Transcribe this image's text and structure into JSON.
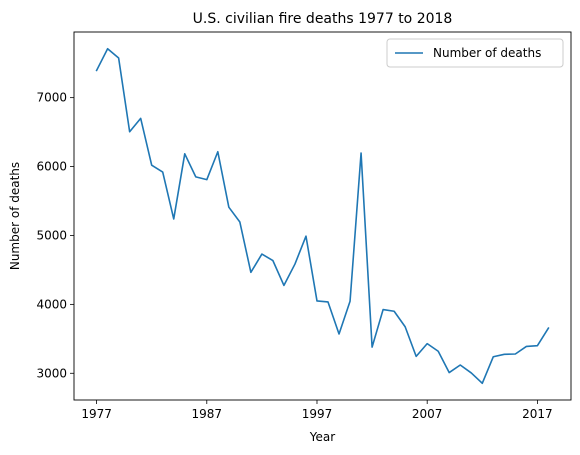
{
  "chart_data": {
    "type": "line",
    "title": "U.S. civilian fire deaths 1977 to 2018",
    "xlabel": "Year",
    "ylabel": "Number of deaths",
    "x": [
      1977,
      1978,
      1979,
      1980,
      1981,
      1982,
      1983,
      1984,
      1985,
      1986,
      1987,
      1988,
      1989,
      1990,
      1991,
      1992,
      1993,
      1994,
      1995,
      1996,
      1997,
      1998,
      1999,
      2000,
      2001,
      2002,
      2003,
      2004,
      2005,
      2006,
      2007,
      2008,
      2009,
      2010,
      2011,
      2012,
      2013,
      2014,
      2015,
      2016,
      2017,
      2018
    ],
    "series": [
      {
        "name": "Number of deaths",
        "color": "#1f77b4",
        "values": [
          7395,
          7710,
          7575,
          6505,
          6700,
          6020,
          5920,
          5240,
          6185,
          5850,
          5810,
          6215,
          5410,
          5195,
          4465,
          4730,
          4635,
          4275,
          4585,
          4990,
          4050,
          4035,
          3570,
          4045,
          6196,
          3380,
          3925,
          3900,
          3675,
          3245,
          3430,
          3320,
          3010,
          3120,
          3005,
          2855,
          3240,
          3275,
          3280,
          3390,
          3400,
          3655
        ]
      }
    ],
    "xticks": [
      1977,
      1987,
      1997,
      2007,
      2017
    ],
    "yticks": [
      3000,
      4000,
      5000,
      6000,
      7000
    ],
    "xlim": [
      1974.95,
      2020.05
    ],
    "ylim": [
      2612.25,
      7952.75
    ],
    "grid": false,
    "legend_position": "upper right"
  }
}
